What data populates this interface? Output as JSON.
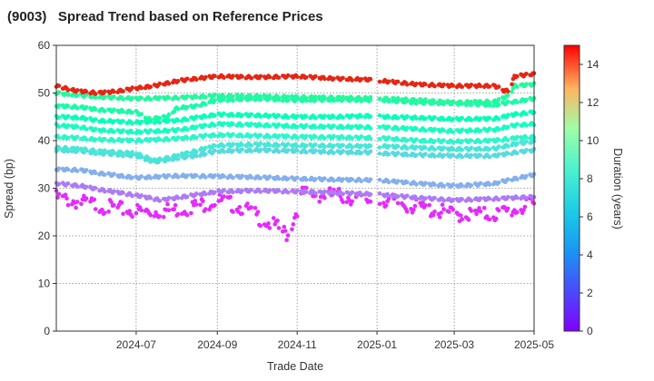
{
  "title": "(9003)   Spread Trend based on Reference Prices",
  "chart_data": {
    "type": "scatter",
    "title": "(9003)   Spread Trend based on Reference Prices",
    "xlabel": "Trade Date",
    "ylabel": "Spread (bp)",
    "xlim": [
      "2024-05-01",
      "2025-05-01"
    ],
    "ylim": [
      0,
      60
    ],
    "x_ticks": [
      {
        "date": "2024-07-01",
        "label": "2024-07"
      },
      {
        "date": "2024-09-01",
        "label": "2024-09"
      },
      {
        "date": "2024-11-01",
        "label": "2024-11"
      },
      {
        "date": "2025-01-01",
        "label": "2025-01"
      },
      {
        "date": "2025-03-01",
        "label": "2025-03"
      },
      {
        "date": "2025-05-01",
        "label": "2025-05"
      }
    ],
    "y_ticks": [
      0,
      10,
      20,
      30,
      40,
      50,
      60
    ],
    "grid": true,
    "colorbar": {
      "label": "Duration (years)",
      "range": [
        0,
        15
      ],
      "ticks": [
        0,
        2,
        4,
        6,
        8,
        10,
        12,
        14
      ],
      "colormap": "rainbow"
    },
    "gaps": [
      [
        "2024-12-27",
        "2025-01-03"
      ]
    ],
    "series": [
      {
        "duration": 14.3,
        "points": [
          [
            "2024-05-01",
            51.5
          ],
          [
            "2024-05-15",
            50.5
          ],
          [
            "2024-06-01",
            50.0
          ],
          [
            "2024-06-15",
            50.3
          ],
          [
            "2024-07-01",
            51.0
          ],
          [
            "2024-07-15",
            51.5
          ],
          [
            "2024-08-01",
            52.5
          ],
          [
            "2024-08-15",
            53.0
          ],
          [
            "2024-09-01",
            53.5
          ],
          [
            "2024-10-01",
            53.3
          ],
          [
            "2024-11-01",
            53.5
          ],
          [
            "2024-12-01",
            53.0
          ],
          [
            "2024-12-26",
            52.8
          ],
          [
            "2025-01-06",
            52.5
          ],
          [
            "2025-02-01",
            51.8
          ],
          [
            "2025-03-01",
            51.5
          ],
          [
            "2025-04-01",
            51.5
          ],
          [
            "2025-04-08",
            50.5
          ],
          [
            "2025-04-12",
            50.5
          ],
          [
            "2025-04-16",
            53.5
          ],
          [
            "2025-05-01",
            54.0
          ]
        ]
      },
      {
        "duration": 8.6,
        "points": [
          [
            "2024-05-01",
            50.0
          ],
          [
            "2024-05-15",
            49.6
          ],
          [
            "2024-06-01",
            49.2
          ],
          [
            "2024-07-01",
            48.8
          ],
          [
            "2024-08-01",
            49.0
          ],
          [
            "2024-09-01",
            49.4
          ],
          [
            "2024-10-01",
            49.3
          ],
          [
            "2024-11-01",
            49.1
          ],
          [
            "2024-12-01",
            49.0
          ],
          [
            "2024-12-26",
            48.9
          ],
          [
            "2025-01-06",
            48.8
          ],
          [
            "2025-02-01",
            48.5
          ],
          [
            "2025-03-01",
            48.0
          ],
          [
            "2025-04-01",
            48.2
          ],
          [
            "2025-04-12",
            49.5
          ],
          [
            "2025-04-16",
            51.5
          ],
          [
            "2025-05-01",
            51.8
          ]
        ]
      },
      {
        "duration": 8.2,
        "points": [
          [
            "2024-05-01",
            47.3
          ],
          [
            "2024-05-20",
            47.0
          ],
          [
            "2024-06-01",
            46.5
          ],
          [
            "2024-07-01",
            46.0
          ],
          [
            "2024-07-10",
            44.5
          ],
          [
            "2024-07-25",
            45.0
          ],
          [
            "2024-08-01",
            46.8
          ],
          [
            "2024-08-15",
            47.2
          ],
          [
            "2024-09-01",
            48.5
          ],
          [
            "2024-10-01",
            48.8
          ],
          [
            "2024-11-01",
            48.5
          ],
          [
            "2024-12-01",
            48.6
          ],
          [
            "2024-12-26",
            48.5
          ],
          [
            "2025-01-06",
            48.5
          ],
          [
            "2025-02-01",
            48.0
          ],
          [
            "2025-03-01",
            47.8
          ],
          [
            "2025-04-01",
            47.5
          ],
          [
            "2025-04-12",
            48.0
          ],
          [
            "2025-05-01",
            48.8
          ]
        ]
      },
      {
        "duration": 7.3,
        "points": [
          [
            "2024-05-01",
            45.0
          ],
          [
            "2024-05-20",
            44.8
          ],
          [
            "2024-06-01",
            44.2
          ],
          [
            "2024-07-01",
            43.8
          ],
          [
            "2024-08-01",
            44.2
          ],
          [
            "2024-09-01",
            45.5
          ],
          [
            "2024-10-01",
            45.3
          ],
          [
            "2024-11-01",
            45.0
          ],
          [
            "2024-12-01",
            45.0
          ],
          [
            "2024-12-26",
            45.2
          ],
          [
            "2025-01-06",
            45.0
          ],
          [
            "2025-02-01",
            44.8
          ],
          [
            "2025-03-01",
            44.5
          ],
          [
            "2025-04-01",
            44.6
          ],
          [
            "2025-04-16",
            45.5
          ],
          [
            "2025-05-01",
            46.0
          ]
        ]
      },
      {
        "duration": 6.8,
        "points": [
          [
            "2024-05-01",
            43.2
          ],
          [
            "2024-05-20",
            42.8
          ],
          [
            "2024-06-01",
            42.2
          ],
          [
            "2024-07-01",
            41.8
          ],
          [
            "2024-08-01",
            42.2
          ],
          [
            "2024-09-01",
            43.5
          ],
          [
            "2024-10-01",
            43.3
          ],
          [
            "2024-11-01",
            43.0
          ],
          [
            "2024-12-01",
            42.9
          ],
          [
            "2024-12-26",
            42.8
          ],
          [
            "2025-01-06",
            42.8
          ],
          [
            "2025-02-01",
            42.4
          ],
          [
            "2025-03-01",
            42.0
          ],
          [
            "2025-04-01",
            42.3
          ],
          [
            "2025-04-16",
            43.2
          ],
          [
            "2025-05-01",
            43.5
          ]
        ]
      },
      {
        "duration": 6.2,
        "points": [
          [
            "2024-05-01",
            40.8
          ],
          [
            "2024-05-20",
            40.5
          ],
          [
            "2024-06-01",
            40.2
          ],
          [
            "2024-07-01",
            40.0
          ],
          [
            "2024-08-01",
            40.4
          ],
          [
            "2024-09-01",
            41.2
          ],
          [
            "2024-10-01",
            41.0
          ],
          [
            "2024-11-01",
            40.8
          ],
          [
            "2024-12-01",
            40.7
          ],
          [
            "2024-12-26",
            40.6
          ],
          [
            "2025-01-06",
            40.5
          ],
          [
            "2025-02-01",
            40.0
          ],
          [
            "2025-03-01",
            39.8
          ],
          [
            "2025-04-01",
            40.0
          ],
          [
            "2025-04-16",
            40.5
          ],
          [
            "2025-05-01",
            40.8
          ]
        ]
      },
      {
        "duration": 5.4,
        "points": [
          [
            "2024-05-01",
            38.5
          ],
          [
            "2024-05-20",
            38.2
          ],
          [
            "2024-06-01",
            37.8
          ],
          [
            "2024-07-01",
            37.3
          ],
          [
            "2024-07-15",
            35.8
          ],
          [
            "2024-08-01",
            36.8
          ],
          [
            "2024-08-15",
            37.8
          ],
          [
            "2024-09-01",
            39.0
          ],
          [
            "2024-10-01",
            39.2
          ],
          [
            "2024-11-01",
            39.0
          ],
          [
            "2024-12-01",
            38.9
          ],
          [
            "2024-12-26",
            38.8
          ],
          [
            "2025-01-06",
            38.8
          ],
          [
            "2025-02-01",
            38.5
          ],
          [
            "2025-03-01",
            38.2
          ],
          [
            "2025-04-01",
            38.3
          ],
          [
            "2025-04-16",
            39.3
          ],
          [
            "2025-05-01",
            39.8
          ]
        ]
      },
      {
        "duration": 4.9,
        "points": [
          [
            "2024-05-01",
            38.0
          ],
          [
            "2024-05-20",
            37.8
          ],
          [
            "2024-06-01",
            37.4
          ],
          [
            "2024-07-01",
            36.8
          ],
          [
            "2024-07-15",
            35.5
          ],
          [
            "2024-08-01",
            36.3
          ],
          [
            "2024-08-15",
            36.8
          ],
          [
            "2024-09-01",
            37.8
          ],
          [
            "2024-10-01",
            38.0
          ],
          [
            "2024-11-01",
            37.8
          ],
          [
            "2024-12-01",
            37.6
          ],
          [
            "2024-12-26",
            37.5
          ],
          [
            "2025-01-06",
            37.3
          ],
          [
            "2025-02-01",
            37.0
          ],
          [
            "2025-03-01",
            36.8
          ],
          [
            "2025-04-01",
            36.8
          ],
          [
            "2025-04-16",
            37.5
          ],
          [
            "2025-05-01",
            38.0
          ]
        ]
      },
      {
        "duration": 3.6,
        "points": [
          [
            "2024-05-01",
            34.0
          ],
          [
            "2024-05-20",
            33.8
          ],
          [
            "2024-06-01",
            33.2
          ],
          [
            "2024-07-01",
            32.2
          ],
          [
            "2024-08-01",
            32.6
          ],
          [
            "2024-09-01",
            32.5
          ],
          [
            "2024-10-01",
            32.3
          ],
          [
            "2024-11-01",
            32.0
          ],
          [
            "2024-12-01",
            31.8
          ],
          [
            "2024-12-26",
            31.7
          ],
          [
            "2025-01-06",
            31.6
          ],
          [
            "2025-02-01",
            31.0
          ],
          [
            "2025-03-01",
            30.5
          ],
          [
            "2025-04-01",
            31.0
          ],
          [
            "2025-04-16",
            32.0
          ],
          [
            "2025-05-01",
            32.8
          ]
        ]
      },
      {
        "duration": 2.4,
        "points": [
          [
            "2024-05-01",
            31.0
          ],
          [
            "2024-05-20",
            30.5
          ],
          [
            "2024-06-01",
            29.8
          ],
          [
            "2024-07-01",
            28.5
          ],
          [
            "2024-07-20",
            27.5
          ],
          [
            "2024-08-01",
            28.0
          ],
          [
            "2024-09-01",
            29.3
          ],
          [
            "2024-10-01",
            29.5
          ],
          [
            "2024-11-01",
            29.3
          ],
          [
            "2024-12-01",
            29.0
          ],
          [
            "2024-12-26",
            28.8
          ],
          [
            "2025-01-06",
            28.6
          ],
          [
            "2025-02-01",
            28.0
          ],
          [
            "2025-03-01",
            27.5
          ],
          [
            "2025-04-01",
            27.8
          ],
          [
            "2025-04-16",
            28.0
          ],
          [
            "2025-05-01",
            28.2
          ]
        ]
      },
      {
        "duration": 0.8,
        "points": [
          [
            "2024-05-01",
            28.0
          ],
          [
            "2024-05-20",
            27.0
          ],
          [
            "2024-06-01",
            26.5
          ],
          [
            "2024-06-20",
            25.5
          ],
          [
            "2024-07-10",
            25.0
          ],
          [
            "2024-08-01",
            25.5
          ],
          [
            "2024-08-20",
            26.5
          ],
          [
            "2024-09-01",
            27.5
          ],
          [
            "2024-09-20",
            26.0
          ],
          [
            "2024-10-05",
            23.5
          ],
          [
            "2024-10-15",
            22.0
          ],
          [
            "2024-10-25",
            20.2
          ],
          [
            "2024-11-05",
            28.8
          ],
          [
            "2024-12-01",
            28.5
          ],
          [
            "2024-12-26",
            27.5
          ],
          [
            "2025-01-06",
            27.5
          ],
          [
            "2025-02-01",
            26.0
          ],
          [
            "2025-03-01",
            24.5
          ],
          [
            "2025-04-01",
            24.5
          ],
          [
            "2025-04-16",
            25.5
          ],
          [
            "2025-05-01",
            26.5
          ]
        ]
      }
    ]
  }
}
